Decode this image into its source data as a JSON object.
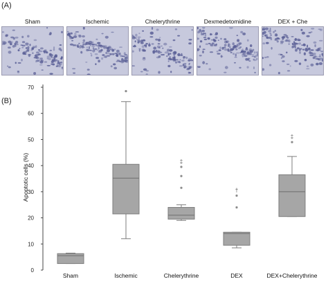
{
  "panel_a": {
    "label": "(A)",
    "images": [
      {
        "title": "Sham"
      },
      {
        "title": "Ischemic"
      },
      {
        "title": "Chelerythrine"
      },
      {
        "title": "Dexmedetomidine"
      },
      {
        "title": "DEX + Che"
      }
    ]
  },
  "panel_b": {
    "label": "(B)"
  },
  "colors": {
    "box_fill": "#a6a6a6",
    "box_stroke": "#7d7d7d",
    "outlier": "#8c8c8c",
    "tissue_bg": "#c7c9dd",
    "cell": "#5a5f96"
  },
  "chart_data": {
    "type": "box",
    "title": "",
    "ylabel": "Apoptotic cells (%)",
    "xlabel": "",
    "ylim": [
      0,
      70
    ],
    "yticks": [
      0,
      10,
      20,
      30,
      40,
      50,
      60,
      70
    ],
    "grid": false,
    "categories": [
      "Sham",
      "Ischemic",
      "Chelerythrine",
      "DEX",
      "DEX+Chelerythrine"
    ],
    "boxes": [
      {
        "whisker_low": 2.5,
        "q1": 2.5,
        "median": 5.5,
        "q3": 6.3,
        "whisker_high": 6.5,
        "outliers": [],
        "marker": ""
      },
      {
        "whisker_low": 12,
        "q1": 21.5,
        "median": 35.2,
        "q3": 40.5,
        "whisker_high": 64.5,
        "outliers": [
          68.5
        ],
        "marker": ""
      },
      {
        "whisker_low": 19,
        "q1": 19.5,
        "median": 21,
        "q3": 24,
        "whisker_high": 25,
        "outliers": [
          31.5,
          36,
          39.5
        ],
        "marker": "‡"
      },
      {
        "whisker_low": 8.5,
        "q1": 9.5,
        "median": 14,
        "q3": 14.5,
        "whisker_high": 14.5,
        "outliers": [
          24,
          28.5
        ],
        "marker": "†"
      },
      {
        "whisker_low": 20.5,
        "q1": 20.5,
        "median": 30,
        "q3": 36.5,
        "whisker_high": 43.5,
        "outliers": [
          49
        ],
        "marker": "‡"
      }
    ]
  }
}
